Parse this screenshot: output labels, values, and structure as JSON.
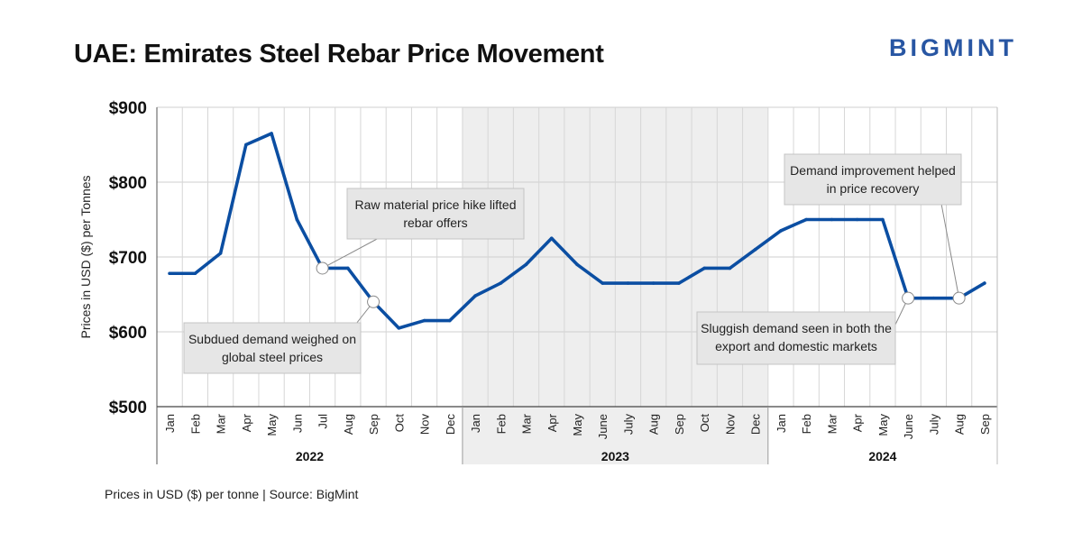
{
  "header": {
    "title": "UAE: Emirates Steel Rebar Price Movement",
    "logo": "BIGMINT"
  },
  "footer": {
    "note": "Prices in USD ($) per tonne | Source: BigMint"
  },
  "colors": {
    "line": "#0b4ea2",
    "logo": "#2856a3",
    "shade": "#eeeeee",
    "grid": "#d6d6d6",
    "annotation_box": "#e6e6e6"
  },
  "chart_data": {
    "type": "line",
    "title": "UAE: Emirates Steel Rebar Price Movement",
    "xlabel": "",
    "ylabel": "Prices in USD ($) per Tonnes",
    "ylim": [
      500,
      900
    ],
    "y_ticks": [
      500,
      600,
      700,
      800,
      900
    ],
    "y_tick_labels": [
      "$500",
      "$600",
      "$700",
      "$800",
      "$900"
    ],
    "categories": [
      "Jan",
      "Feb",
      "Mar",
      "Apr",
      "May",
      "Jun",
      "Jul",
      "Aug",
      "Sep",
      "Oct",
      "Nov",
      "Dec",
      "Jan",
      "Feb",
      "Mar",
      "Apr",
      "May",
      "June",
      "July",
      "Aug",
      "Sep",
      "Oct",
      "Nov",
      "Dec",
      "Jan",
      "Feb",
      "Mar",
      "Apr",
      "May",
      "June",
      "July",
      "Aug",
      "Sep"
    ],
    "years": [
      {
        "label": "2022",
        "start": 0,
        "count": 12,
        "shaded": false
      },
      {
        "label": "2023",
        "start": 12,
        "count": 12,
        "shaded": true
      },
      {
        "label": "2024",
        "start": 24,
        "count": 9,
        "shaded": false
      }
    ],
    "grid": true,
    "series": [
      {
        "name": "Emirates Steel rebar price",
        "values": [
          678,
          678,
          705,
          850,
          865,
          750,
          685,
          685,
          640,
          605,
          615,
          615,
          648,
          665,
          690,
          725,
          690,
          665,
          665,
          665,
          665,
          685,
          685,
          710,
          735,
          750,
          750,
          750,
          750,
          645,
          645,
          645,
          665
        ]
      }
    ],
    "annotations": [
      {
        "lines": [
          "Raw material price hike lifted",
          "rebar offers"
        ],
        "point_index": 6,
        "value": 685
      },
      {
        "lines": [
          "Subdued demand weighed on",
          "global steel prices"
        ],
        "point_index": 8,
        "value": 640
      },
      {
        "lines": [
          "Demand improvement helped",
          "in price recovery"
        ],
        "point_index": 31,
        "value": 645
      },
      {
        "lines": [
          "Sluggish demand seen in both the",
          "export and domestic markets"
        ],
        "point_index": 29,
        "value": 645
      }
    ]
  }
}
